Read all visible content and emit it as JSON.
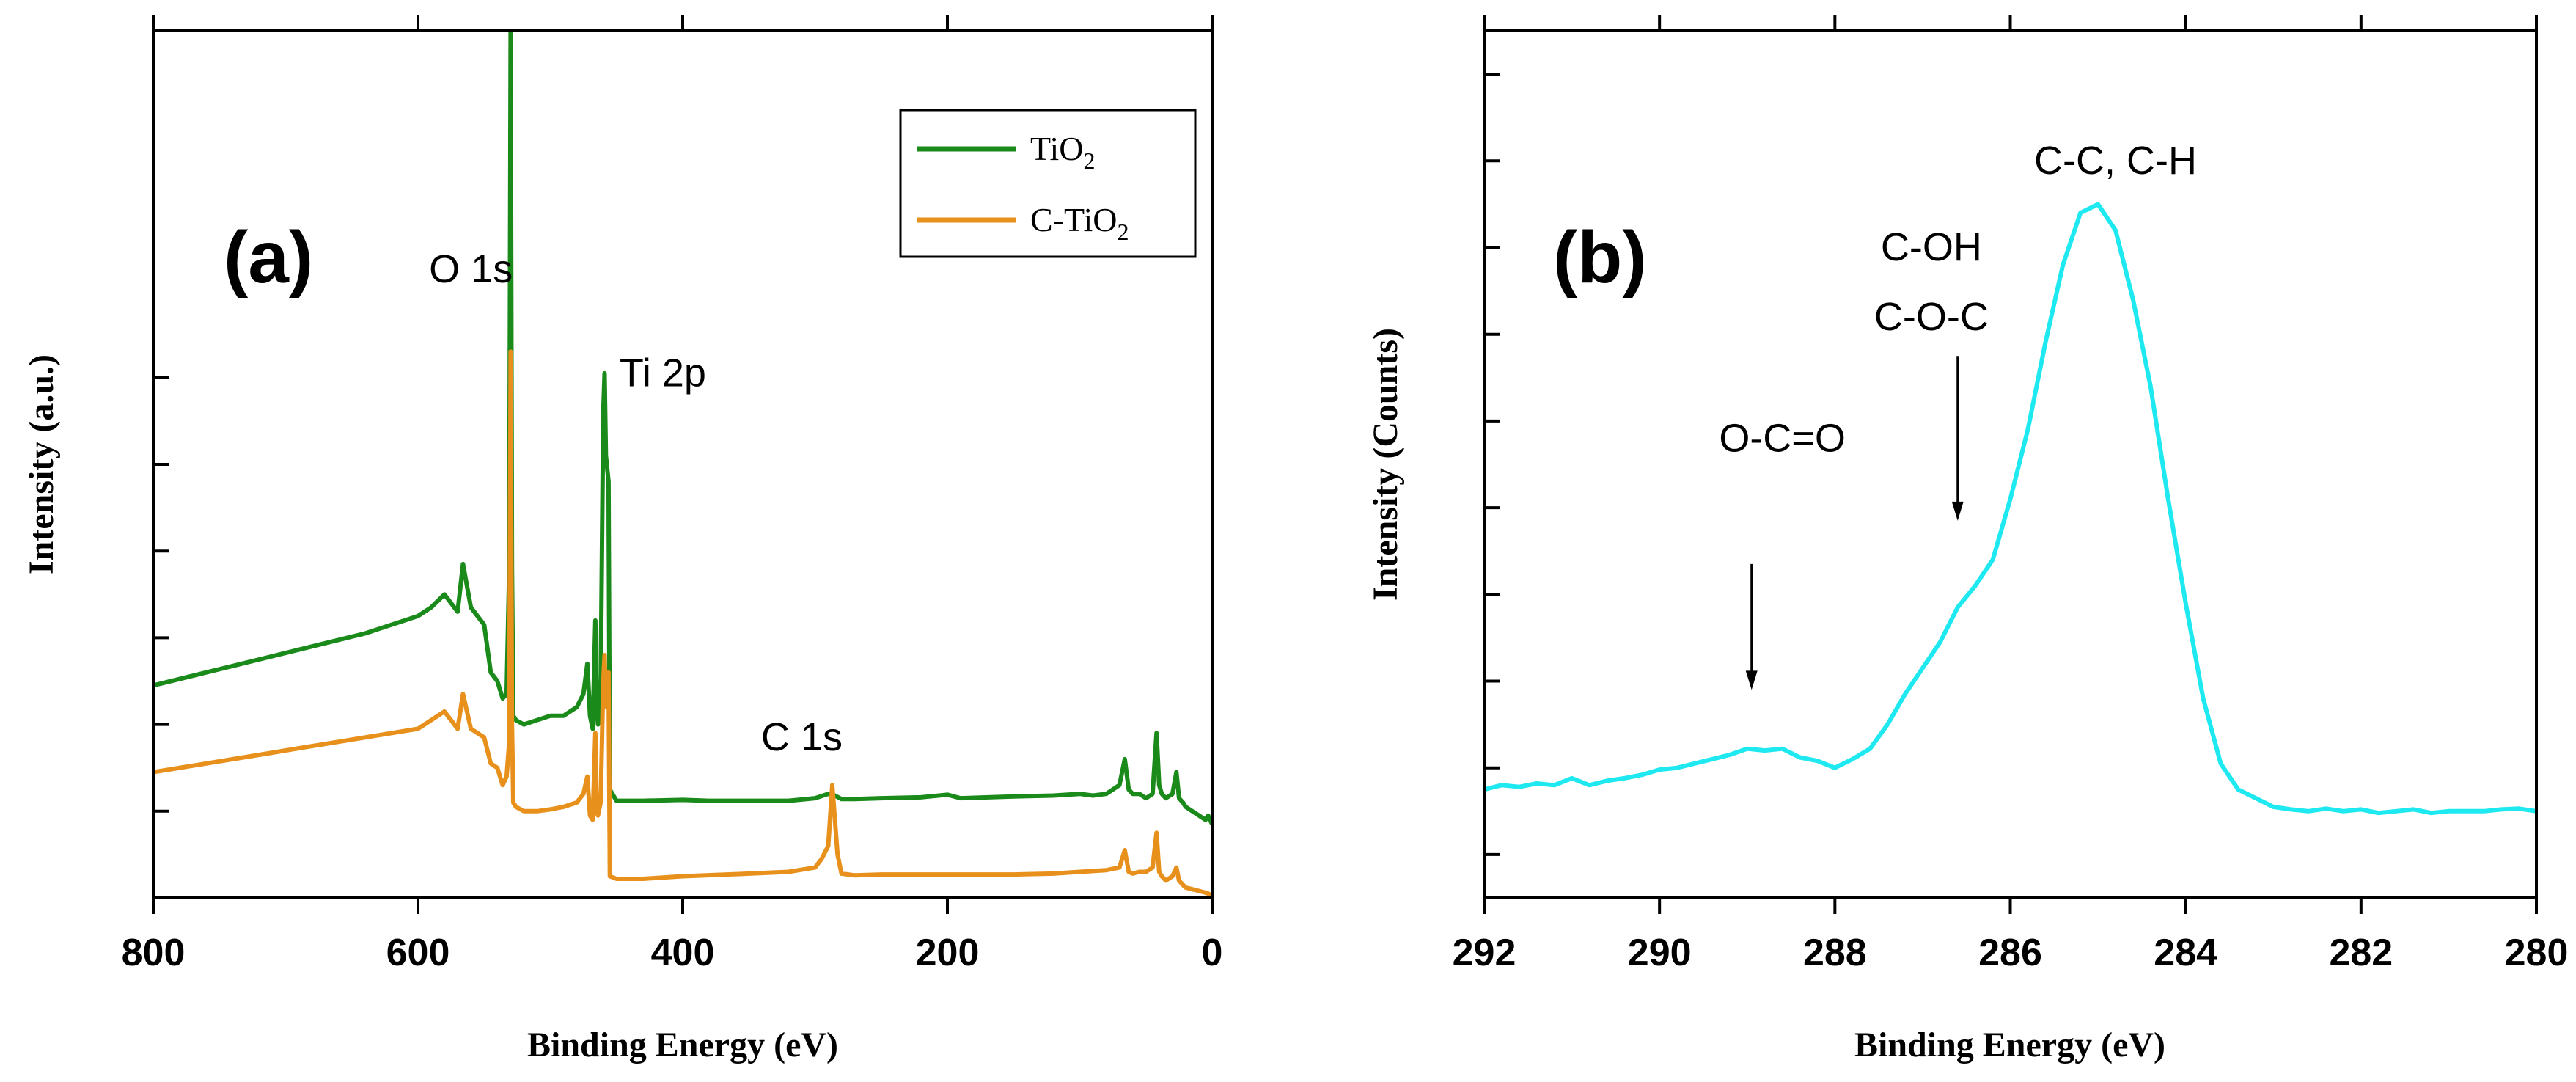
{
  "chart_data": [
    {
      "id": "a",
      "type": "line",
      "panel_label": "(a)",
      "title": "",
      "xlabel": "Binding Energy (eV)",
      "ylabel": "Intensity (a.u.)",
      "xlim": [
        800,
        0
      ],
      "x_reversed": true,
      "ylim": [
        0,
        10
      ],
      "x_ticks": [
        800,
        600,
        400,
        200,
        0
      ],
      "x_tick_labels": [
        "800",
        "600",
        "400",
        "200",
        "0"
      ],
      "y_ticks": [
        0,
        1,
        2,
        3,
        4,
        5,
        6
      ],
      "y_tick_labels_shown": false,
      "legend": {
        "position": "top-right",
        "entries": [
          {
            "base": "TiO",
            "sub": "2",
            "prefix": "",
            "color": "#1a8a1a"
          },
          {
            "base": "TiO",
            "sub": "2",
            "prefix": "C-",
            "color": "#e8901c"
          }
        ]
      },
      "annotations": [
        {
          "text": "O 1s",
          "x": 560,
          "y": 7.1
        },
        {
          "text": "Ti 2p",
          "x": 415,
          "y": 5.9
        },
        {
          "text": "C 1s",
          "x": 310,
          "y": 1.7
        }
      ],
      "series": [
        {
          "name": "TiO2",
          "color": "#1a8a1a",
          "x": [
            800,
            760,
            720,
            680,
            640,
            600,
            590,
            580,
            575,
            570,
            566,
            560,
            550,
            545,
            540,
            536,
            533,
            531,
            530,
            529,
            528,
            526,
            520,
            510,
            500,
            490,
            480,
            475,
            472,
            470,
            468,
            466,
            465,
            464,
            462,
            460,
            459,
            458,
            456,
            455,
            450,
            430,
            400,
            380,
            350,
            320,
            300,
            290,
            285,
            280,
            270,
            250,
            220,
            200,
            190,
            150,
            120,
            100,
            90,
            80,
            70,
            66,
            63,
            60,
            55,
            50,
            45,
            42,
            40,
            38,
            35,
            30,
            27,
            25,
            22,
            20,
            15,
            10,
            5,
            3,
            0
          ],
          "y": [
            2.45,
            2.6,
            2.75,
            2.9,
            3.05,
            3.25,
            3.35,
            3.5,
            3.4,
            3.3,
            3.85,
            3.35,
            3.15,
            2.6,
            2.5,
            2.3,
            2.35,
            3.8,
            10.0,
            3.8,
            2.1,
            2.05,
            2.0,
            2.05,
            2.1,
            2.1,
            2.2,
            2.35,
            2.7,
            2.1,
            1.95,
            3.2,
            2.2,
            2.0,
            2.4,
            5.6,
            6.05,
            5.1,
            4.8,
            1.25,
            1.12,
            1.12,
            1.13,
            1.12,
            1.12,
            1.12,
            1.15,
            1.2,
            1.18,
            1.14,
            1.14,
            1.15,
            1.16,
            1.19,
            1.15,
            1.17,
            1.18,
            1.2,
            1.18,
            1.2,
            1.3,
            1.6,
            1.25,
            1.2,
            1.2,
            1.15,
            1.2,
            1.9,
            1.3,
            1.2,
            1.15,
            1.2,
            1.45,
            1.15,
            1.1,
            1.05,
            1.0,
            0.95,
            0.9,
            0.95,
            0.85
          ]
        },
        {
          "name": "C-TiO2",
          "color": "#e8901c",
          "x": [
            800,
            760,
            720,
            680,
            640,
            600,
            590,
            580,
            575,
            570,
            566,
            560,
            550,
            545,
            540,
            536,
            533,
            531,
            530,
            529,
            528,
            526,
            520,
            510,
            500,
            490,
            480,
            475,
            472,
            470,
            468,
            466,
            465,
            464,
            462,
            460,
            459,
            458,
            456,
            455,
            450,
            430,
            400,
            350,
            320,
            300,
            295,
            290,
            287,
            285,
            283,
            280,
            270,
            250,
            200,
            150,
            120,
            100,
            80,
            70,
            66,
            63,
            60,
            55,
            50,
            45,
            42,
            40,
            38,
            35,
            30,
            27,
            25,
            22,
            20,
            15,
            10,
            5,
            3,
            0
          ],
          "y": [
            1.45,
            1.55,
            1.65,
            1.75,
            1.85,
            1.95,
            2.05,
            2.15,
            2.05,
            1.95,
            2.35,
            1.95,
            1.85,
            1.55,
            1.5,
            1.3,
            1.4,
            1.8,
            6.3,
            2.0,
            1.1,
            1.05,
            1.0,
            1.0,
            1.02,
            1.05,
            1.1,
            1.2,
            1.4,
            0.95,
            0.9,
            1.9,
            1.0,
            0.95,
            1.1,
            2.5,
            2.8,
            2.2,
            2.6,
            0.25,
            0.22,
            0.22,
            0.25,
            0.28,
            0.3,
            0.35,
            0.45,
            0.6,
            1.3,
            0.9,
            0.5,
            0.28,
            0.26,
            0.27,
            0.27,
            0.27,
            0.28,
            0.3,
            0.32,
            0.35,
            0.55,
            0.3,
            0.28,
            0.3,
            0.3,
            0.35,
            0.75,
            0.3,
            0.25,
            0.2,
            0.25,
            0.35,
            0.2,
            0.15,
            0.12,
            0.1,
            0.08,
            0.06,
            0.05,
            0.02
          ]
        }
      ]
    },
    {
      "id": "b",
      "type": "line",
      "panel_label": "(b)",
      "title": "",
      "xlabel": "Binding Energy (eV)",
      "ylabel": "Intensity (Counts)",
      "xlim": [
        292,
        280
      ],
      "x_reversed": true,
      "ylim": [
        0,
        10
      ],
      "x_ticks": [
        292,
        290,
        288,
        286,
        284,
        282,
        280
      ],
      "x_tick_labels": [
        "292",
        "290",
        "288",
        "286",
        "284",
        "282",
        "280"
      ],
      "y_ticks": [
        0.5,
        1.5,
        2.5,
        3.5,
        4.5,
        5.5,
        6.5,
        7.5,
        8.5,
        9.5
      ],
      "y_tick_labels_shown": false,
      "annotations": [
        {
          "text": "C-C, C-H",
          "x": 284.8,
          "y": 8.35
        },
        {
          "text": "C-OH",
          "x": 286.9,
          "y": 7.35
        },
        {
          "text": "C-O-C",
          "x": 286.9,
          "y": 6.55
        },
        {
          "text": "O-C=O",
          "x": 288.6,
          "y": 5.15
        }
      ],
      "arrows": [
        {
          "x": 288.95,
          "y_from": 3.85,
          "y_to": 2.4
        },
        {
          "x": 286.6,
          "y_from": 6.25,
          "y_to": 4.35
        }
      ],
      "series": [
        {
          "name": "C 1s",
          "color": "#1ee8f0",
          "x": [
            292,
            291.8,
            291.6,
            291.4,
            291.2,
            291.0,
            290.8,
            290.6,
            290.4,
            290.2,
            290.0,
            289.8,
            289.6,
            289.4,
            289.2,
            289.0,
            288.8,
            288.6,
            288.4,
            288.2,
            288.0,
            287.8,
            287.6,
            287.4,
            287.2,
            287.0,
            286.8,
            286.6,
            286.4,
            286.2,
            286.0,
            285.8,
            285.6,
            285.4,
            285.2,
            285.0,
            284.8,
            284.6,
            284.4,
            284.2,
            284.0,
            283.8,
            283.6,
            283.4,
            283.2,
            283.0,
            282.8,
            282.6,
            282.4,
            282.2,
            282.0,
            281.8,
            281.6,
            281.4,
            281.2,
            281.0,
            280.8,
            280.6,
            280.4,
            280.2,
            280.0
          ],
          "y": [
            1.25,
            1.3,
            1.28,
            1.32,
            1.3,
            1.38,
            1.3,
            1.35,
            1.38,
            1.42,
            1.48,
            1.5,
            1.55,
            1.6,
            1.65,
            1.72,
            1.7,
            1.72,
            1.62,
            1.58,
            1.5,
            1.6,
            1.72,
            2.0,
            2.35,
            2.65,
            2.95,
            3.35,
            3.6,
            3.9,
            4.6,
            5.4,
            6.4,
            7.3,
            7.9,
            8.0,
            7.7,
            6.9,
            5.9,
            4.6,
            3.4,
            2.3,
            1.55,
            1.25,
            1.15,
            1.05,
            1.02,
            1.0,
            1.03,
            1.0,
            1.02,
            0.98,
            1.0,
            1.02,
            0.98,
            1.0,
            1.0,
            1.0,
            1.02,
            1.03,
            1.0
          ]
        }
      ]
    }
  ]
}
